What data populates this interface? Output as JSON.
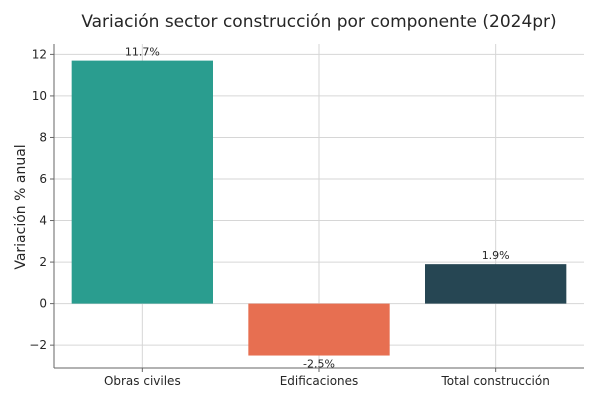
{
  "chart_data": {
    "type": "bar",
    "title": "Variación sector construcción por componente (2024pr)",
    "xlabel": "",
    "ylabel": "Variación % anual",
    "categories": [
      "Obras civiles",
      "Edificaciones",
      "Total construcción"
    ],
    "values": [
      11.7,
      -2.5,
      1.9
    ],
    "value_labels": [
      "11.7%",
      "-2.5%",
      "1.9%"
    ],
    "colors": [
      "#2a9d8f",
      "#e76f51",
      "#264653"
    ],
    "ylim": [
      -3.1,
      12.5
    ],
    "yticks": [
      -2,
      0,
      2,
      4,
      6,
      8,
      10,
      12
    ],
    "ytick_labels": [
      "−2",
      "0",
      "2",
      "4",
      "6",
      "8",
      "10",
      "12"
    ],
    "grid": true,
    "legend": "none"
  }
}
